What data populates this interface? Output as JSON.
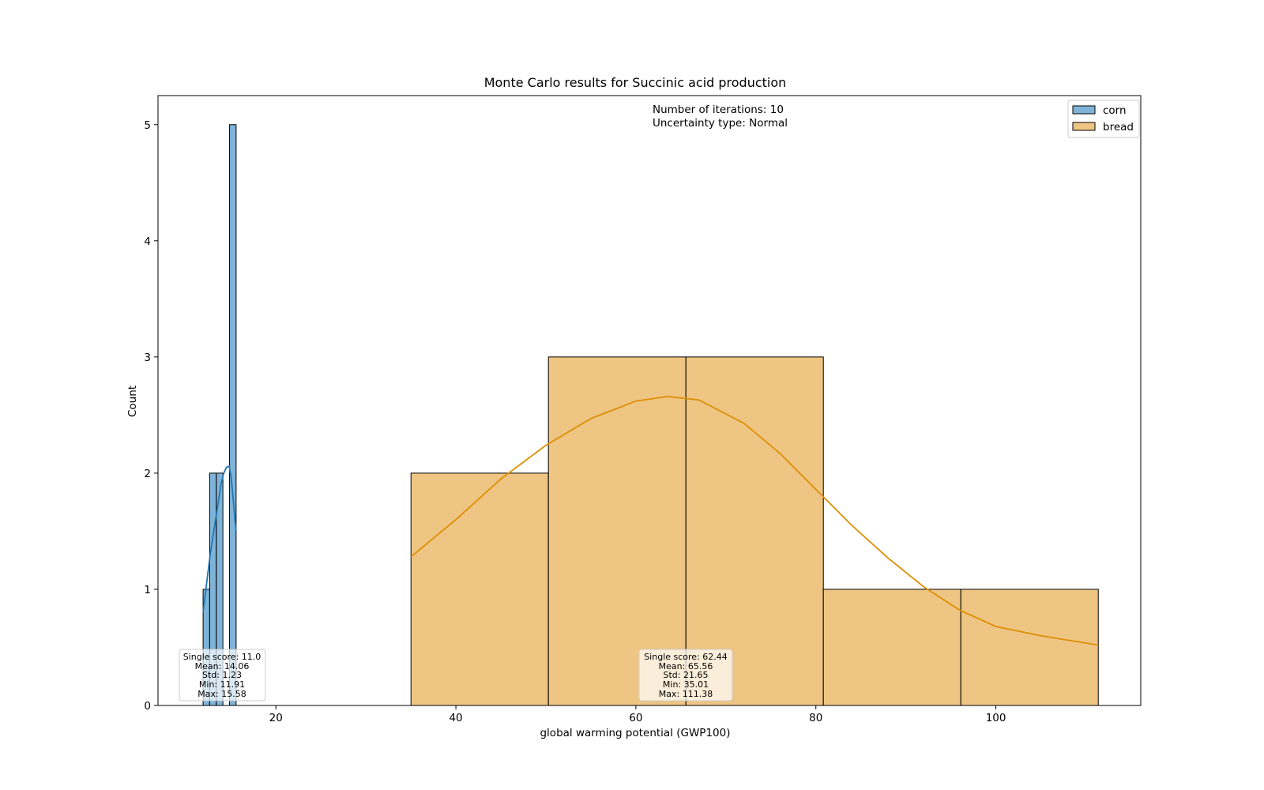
{
  "chart_data": {
    "type": "histogram",
    "title": "Monte Carlo results for Succinic acid production",
    "xlabel": "global warming potential (GWP100)",
    "ylabel": "Count",
    "xlim": [
      6.9,
      116.1
    ],
    "ylim": [
      0,
      5.25
    ],
    "xticks": [
      20,
      40,
      60,
      80,
      100
    ],
    "yticks": [
      0,
      1,
      2,
      3,
      4,
      5
    ],
    "grid": false,
    "legend_position": "top-right",
    "info_lines": [
      "Number of iterations: 10",
      "Uncertainty type: Normal"
    ],
    "series": [
      {
        "name": "corn",
        "color": "#1f77b4",
        "fill_color": "#7fb4d8",
        "bins": [
          {
            "x0": 11.91,
            "x1": 12.64,
            "count": 1
          },
          {
            "x0": 12.64,
            "x1": 13.38,
            "count": 2
          },
          {
            "x0": 13.38,
            "x1": 14.11,
            "count": 2
          },
          {
            "x0": 14.11,
            "x1": 14.85,
            "count": 0
          },
          {
            "x0": 14.85,
            "x1": 15.58,
            "count": 5
          }
        ],
        "kde": [
          [
            11.91,
            0.8
          ],
          [
            12.3,
            1.05
          ],
          [
            12.7,
            1.3
          ],
          [
            13.1,
            1.5
          ],
          [
            13.5,
            1.7
          ],
          [
            13.9,
            1.9
          ],
          [
            14.2,
            2.0
          ],
          [
            14.5,
            2.05
          ],
          [
            14.8,
            2.06
          ],
          [
            15.0,
            1.98
          ],
          [
            15.2,
            1.82
          ],
          [
            15.4,
            1.65
          ],
          [
            15.58,
            1.5
          ]
        ],
        "stats": {
          "single_score": "Single score:  11.0",
          "mean": "Mean: 14.06",
          "std": "Std: 1.23",
          "min": "Min: 11.91",
          "max": "Max: 15.58"
        }
      },
      {
        "name": "bread",
        "color": "#de8f05",
        "fill_color": "#eec582",
        "bins": [
          {
            "x0": 35.01,
            "x1": 50.28,
            "count": 2
          },
          {
            "x0": 50.28,
            "x1": 65.56,
            "count": 3
          },
          {
            "x0": 65.56,
            "x1": 80.83,
            "count": 3
          },
          {
            "x0": 80.83,
            "x1": 96.11,
            "count": 1
          },
          {
            "x0": 96.11,
            "x1": 111.38,
            "count": 1
          }
        ],
        "kde": [
          [
            35.01,
            1.28
          ],
          [
            40,
            1.6
          ],
          [
            45,
            1.95
          ],
          [
            50,
            2.24
          ],
          [
            55,
            2.47
          ],
          [
            60,
            2.62
          ],
          [
            63.5,
            2.66
          ],
          [
            67,
            2.63
          ],
          [
            72,
            2.43
          ],
          [
            76,
            2.17
          ],
          [
            80,
            1.86
          ],
          [
            84,
            1.55
          ],
          [
            88,
            1.27
          ],
          [
            92,
            1.02
          ],
          [
            96,
            0.82
          ],
          [
            100,
            0.68
          ],
          [
            105,
            0.6
          ],
          [
            111.38,
            0.52
          ]
        ],
        "stats": {
          "single_score": "Single score:  62.44",
          "mean": "Mean: 65.56",
          "std": "Std: 21.65",
          "min": "Min: 35.01",
          "max": "Max: 111.38"
        }
      }
    ]
  }
}
